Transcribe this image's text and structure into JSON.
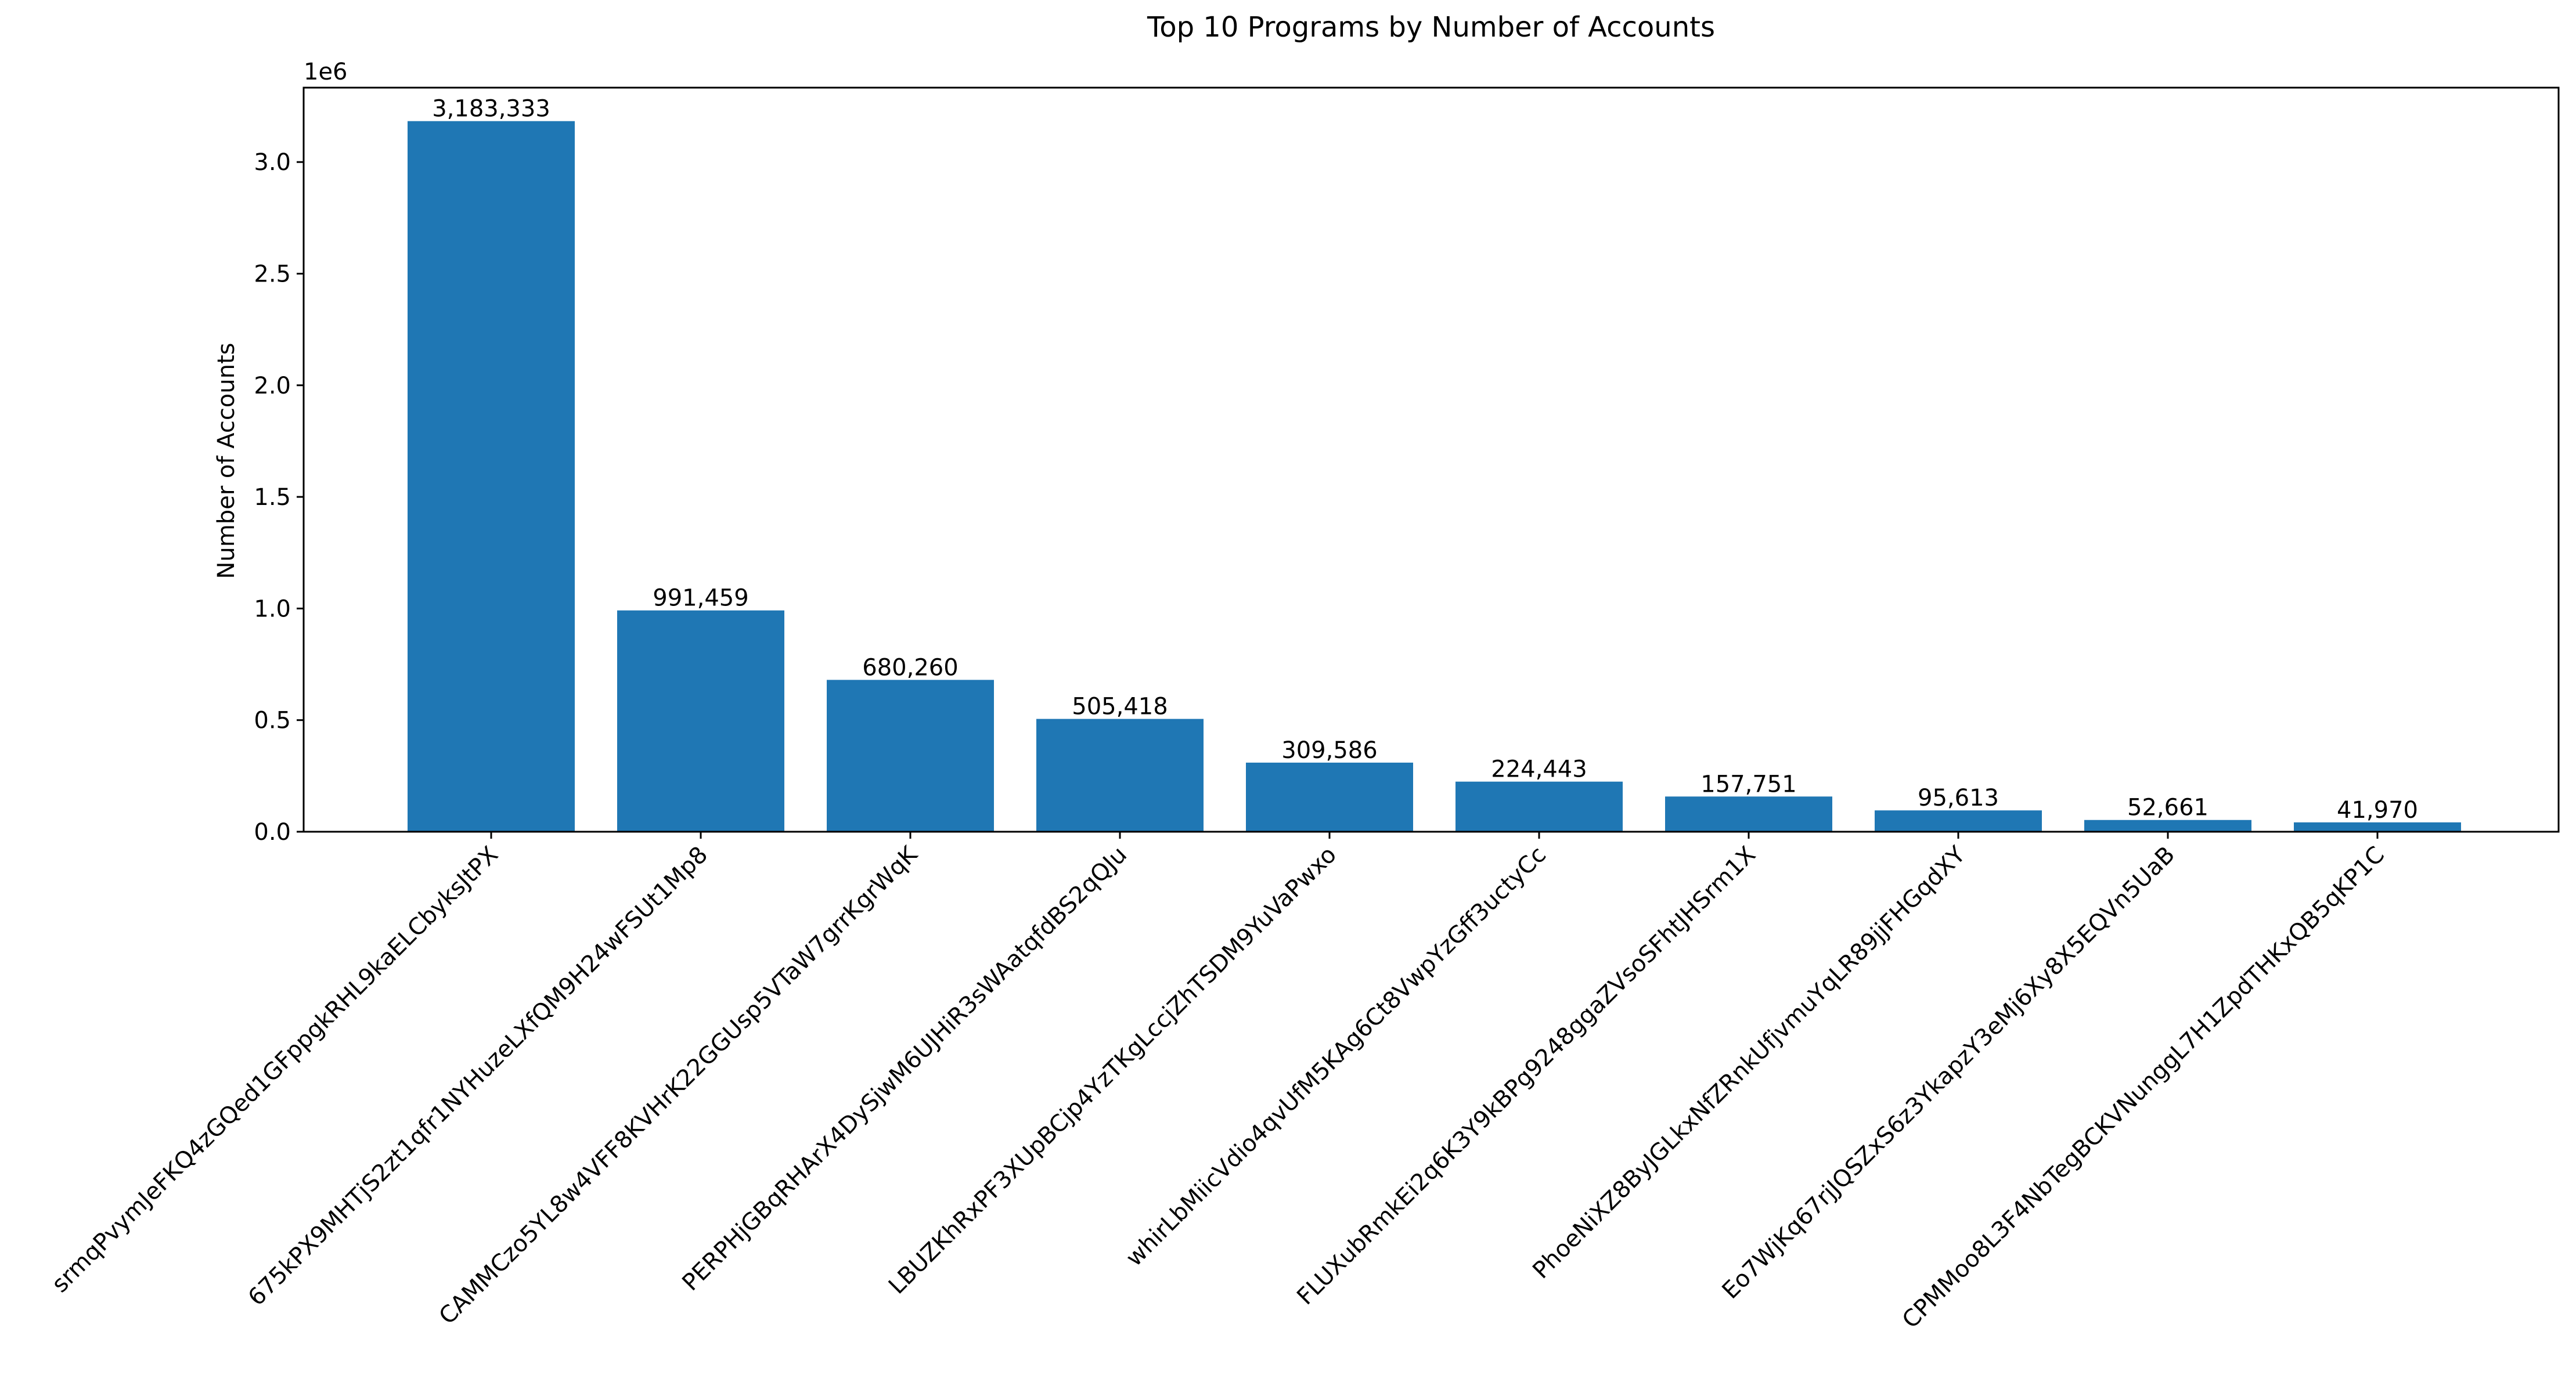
{
  "chart_data": {
    "type": "bar",
    "title": "Top 10 Programs by Number of Accounts",
    "xlabel": "",
    "ylabel": "Number of Accounts",
    "offset_label": "1e6",
    "ylim": [
      0,
      3.3333
    ],
    "y_scale_factor": 1000000,
    "yticks": [
      "0.0",
      "0.5",
      "1.0",
      "1.5",
      "2.0",
      "2.5",
      "3.0"
    ],
    "yticks_values": [
      0,
      0.5,
      1.0,
      1.5,
      2.0,
      2.5,
      3.0
    ],
    "grid": false,
    "bar_color": "#1f77b4",
    "categories": [
      "srmqPvymJeFKQ4zGQed1GFppgkRHL9kaELCbyksJtPX",
      "675kPX9MHTjS2zt1qfr1NYHuzeLXfQM9H24wFSUt1Mp8",
      "CAMMCzo5YL8w4VFF8KVHrK22GGUsp5VTaW7grrKgrWqK",
      "PERPHjGBqRHArX4DySjwM6UJHiR3sWAatqfdBS2qQJu",
      "LBUZKhRxPF3XUpBCjp4YzTKgLccjZhTSDM9YuVaPwxo",
      "whirLbMiicVdio4qvUfM5KAg6Ct8VwpYzGff3uctyCc",
      "FLUXubRmkEi2q6K3Y9kBPg9248ggaZVsoSFhtJHSrm1X",
      "PhoeNiXZ8ByJGLkxNfZRnkUfjvmuYqLR89jjFHGqdXY",
      "Eo7WjKq67rjJQSZxS6z3YkapzY3eMj6Xy8X5EQVn5UaB",
      "CPMMoo8L3F4NbTegBCKVNunggL7H1ZpdTHKxQB5qKP1C"
    ],
    "values": [
      3183333,
      991459,
      680260,
      505418,
      309586,
      224443,
      157751,
      95613,
      52661,
      41970
    ],
    "value_labels": [
      "3,183,333",
      "991,459",
      "680,260",
      "505,418",
      "309,586",
      "224,443",
      "157,751",
      "95,613",
      "52,661",
      "41,970"
    ]
  }
}
